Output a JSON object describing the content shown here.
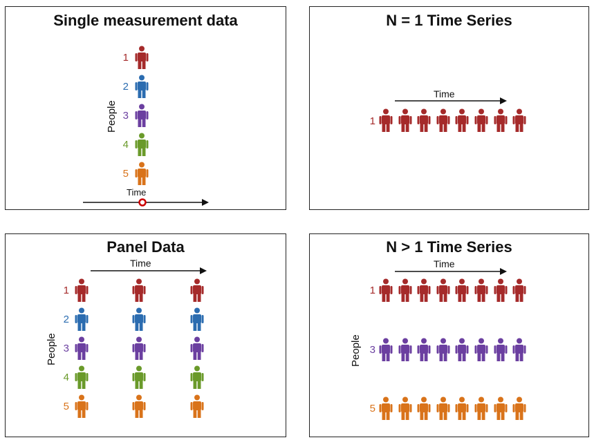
{
  "panels": {
    "single": {
      "title": "Single measurement data",
      "time_label": "Time",
      "people_label": "People"
    },
    "n1": {
      "title": "N = 1 Time Series",
      "time_label": "Time"
    },
    "panel": {
      "title": "Panel Data",
      "time_label": "Time",
      "people_label": "People"
    },
    "nmany": {
      "title": "N > 1 Time Series",
      "time_label": "Time",
      "people_label": "People"
    }
  },
  "people": [
    {
      "id": "1",
      "color": "#a52a2a"
    },
    {
      "id": "2",
      "color": "#2b6cb0"
    },
    {
      "id": "3",
      "color": "#6b3fa0"
    },
    {
      "id": "4",
      "color": "#6a9a2a"
    },
    {
      "id": "5",
      "color": "#d9731a"
    }
  ],
  "series_people": [
    "1",
    "3",
    "5"
  ],
  "marker_color": "#cc0000"
}
